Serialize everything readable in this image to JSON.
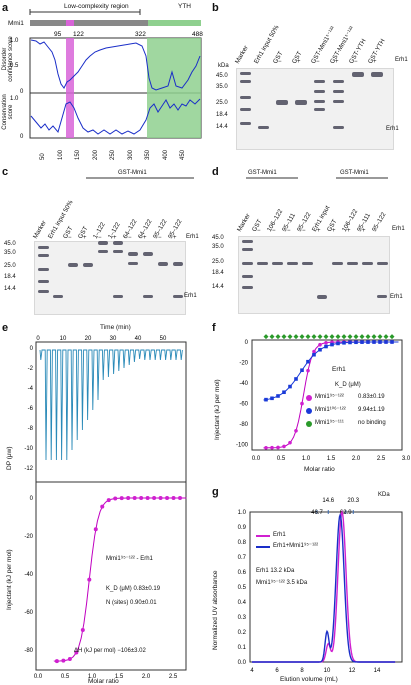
{
  "panels": {
    "a": "a",
    "b": "b",
    "c": "c",
    "d": "d",
    "e": "e",
    "f": "f",
    "g": "g"
  },
  "panel_a": {
    "protein": "Mmi1",
    "region_low": "Low-complexity region",
    "region_yth": "YTH",
    "marks": [
      "95",
      "122",
      "322",
      "488"
    ],
    "ylabel_top": "Disorder confidence score",
    "ylabel_bottom": "Conservation score",
    "yticks": [
      "1.0",
      "0.5",
      "0"
    ],
    "xticks": [
      "50",
      "100",
      "150",
      "200",
      "250",
      "300",
      "350",
      "400",
      "450"
    ],
    "colors": {
      "highlight": "#d864d8",
      "yth": "#8fd08f",
      "line": "#1a2ec8"
    }
  },
  "panel_b": {
    "lanes": [
      "Marker",
      "Erh1 input 50%",
      "GST",
      "GST",
      "GST-Mmi1¹⁻¹²²",
      "GST-Mmi1¹⁻¹²²",
      "GST-YTH",
      "GST-YTH"
    ],
    "signs": [
      "−",
      "+",
      "−",
      "+",
      "−",
      "+"
    ],
    "sign_label": "Erh1",
    "kda_label": "kDa",
    "kda": [
      "45.0",
      "35.0",
      "25.0",
      "18.4",
      "14.4"
    ],
    "band_label": "Erh1"
  },
  "panel_c": {
    "group": "GST-Mmi1",
    "lanes": [
      "Marker",
      "Erh1 input 50%",
      "GST",
      "GST",
      "1–122",
      "1–122",
      "64–122",
      "64–122",
      "95–122",
      "95–122"
    ],
    "signs": [
      "−",
      "+",
      "−",
      "+",
      "−",
      "+",
      "−",
      "+"
    ],
    "sign_label": "Erh1",
    "kda": [
      "45.0",
      "35.0",
      "25.0",
      "18.4",
      "14.4"
    ],
    "band_label": "Erh1"
  },
  "panel_d": {
    "group1": "GST-Mmi1",
    "group2": "GST-Mmi1",
    "lanes": [
      "Marker",
      "GST",
      "106–122",
      "95–111",
      "95–122",
      "Erh1 input",
      "GST",
      "106–122",
      "95–111",
      "95–122"
    ],
    "signs": [
      "−",
      "−",
      "−",
      "−",
      "+",
      "+",
      "+",
      "+"
    ],
    "sign_label": "Erh1",
    "kda": [
      "45.0",
      "35.0",
      "25.0",
      "18.4",
      "14.4"
    ],
    "band_label": "Erh1"
  },
  "panel_e": {
    "time_label": "Time (min)",
    "time_ticks": [
      "0",
      "10",
      "20",
      "30",
      "40",
      "50"
    ],
    "dp_label": "DP (μw)",
    "dp_ticks": [
      "0",
      "-2",
      "-4",
      "-6",
      "-8",
      "-10",
      "-12"
    ],
    "inj_label": "Injectant (kJ per mol)",
    "inj_ticks": [
      "0",
      "-20",
      "-40",
      "-60",
      "-80"
    ],
    "xlabel": "Molar ratio",
    "x_ticks": [
      "0.0",
      "0.5",
      "1.0",
      "1.5",
      "2.0",
      "2.5"
    ],
    "complex": "Mmi1⁹⁵⁻¹²² - Erh1",
    "kd": "K_D (μM)  0.83±0.19",
    "n": "N (sites)  0.90±0.01",
    "dh": "ΔH (kJ per mol) −106±3.02",
    "colors": {
      "trace": "#2a8ab8",
      "fit": "#c000c0",
      "points": "#d020d0"
    }
  },
  "panel_f": {
    "ylabel": "Injectant (kJ per mol)",
    "xlabel": "Molar ratio",
    "y_ticks": [
      "0",
      "-20",
      "-40",
      "-60",
      "-80",
      "-100"
    ],
    "x_ticks": [
      "0.0",
      "0.5",
      "1.0",
      "1.5",
      "2.0",
      "2.5",
      "3.0"
    ],
    "title": "Erh1",
    "kd_header": "K_D (μM)",
    "legend": [
      {
        "name": "Mmi1⁹⁵⁻¹²²",
        "value": "0.83±0.19",
        "color": "#d020d0"
      },
      {
        "name": "Mmi1¹⁰⁶⁻¹²²",
        "value": "9.94±1.19",
        "color": "#1a3ad8"
      },
      {
        "name": "Mmi1⁹⁵⁻¹¹¹",
        "value": "no binding",
        "color": "#2a9a2a"
      }
    ]
  },
  "panel_g": {
    "ylabel": "Normalized UV absorbance",
    "xlabel": "Elution volume (mL)",
    "kda_label": "KDa",
    "markers": [
      "46.7",
      "14.6",
      "62.9",
      "20.3"
    ],
    "legend": [
      {
        "name": "Erh1",
        "color": "#d020d0"
      },
      {
        "name": "Erh1+Mmi1⁹⁵⁻¹²²",
        "color": "#1a2ec8"
      }
    ],
    "note1": "Erh1 13.2 kDa",
    "note2": "Mmi1⁹⁵⁻¹²² 3.5 kDa",
    "y_ticks": [
      "0.0",
      "0.1",
      "0.2",
      "0.3",
      "0.4",
      "0.5",
      "0.6",
      "0.7",
      "0.8",
      "0.9",
      "1.0"
    ],
    "x_ticks": [
      "4",
      "6",
      "8",
      "10",
      "12",
      "14"
    ]
  }
}
